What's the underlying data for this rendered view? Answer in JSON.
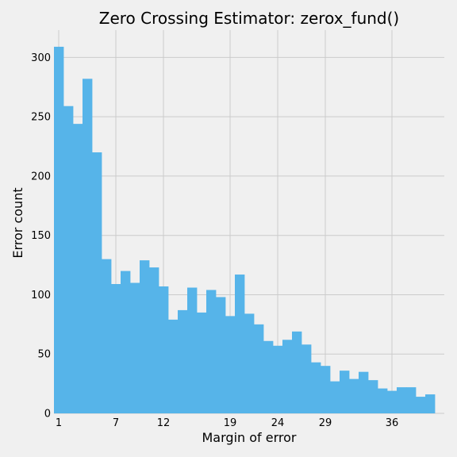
{
  "chart_data": {
    "type": "bar",
    "title": "Zero Crossing Estimator: zerox_fund()",
    "xlabel": "Margin of error",
    "ylabel": "Error count",
    "x_ticks": [
      1,
      7,
      12,
      19,
      24,
      29,
      36
    ],
    "y_ticks": [
      0,
      50,
      100,
      150,
      200,
      250,
      300
    ],
    "xlim": [
      0.5,
      41.5
    ],
    "ylim": [
      0,
      323
    ],
    "grid": true,
    "bin_start": 0.5,
    "bin_width": 1,
    "values": [
      309,
      259,
      244,
      282,
      220,
      130,
      109,
      120,
      110,
      129,
      123,
      107,
      79,
      87,
      106,
      85,
      104,
      98,
      82,
      117,
      84,
      75,
      61,
      57,
      62,
      69,
      58,
      43,
      40,
      27,
      36,
      29,
      35,
      28,
      21,
      19,
      22,
      22,
      14,
      16
    ],
    "colors": {
      "bar": "#56b4e9",
      "background": "#f0f0f0",
      "grid": "#cbcbcb"
    }
  }
}
